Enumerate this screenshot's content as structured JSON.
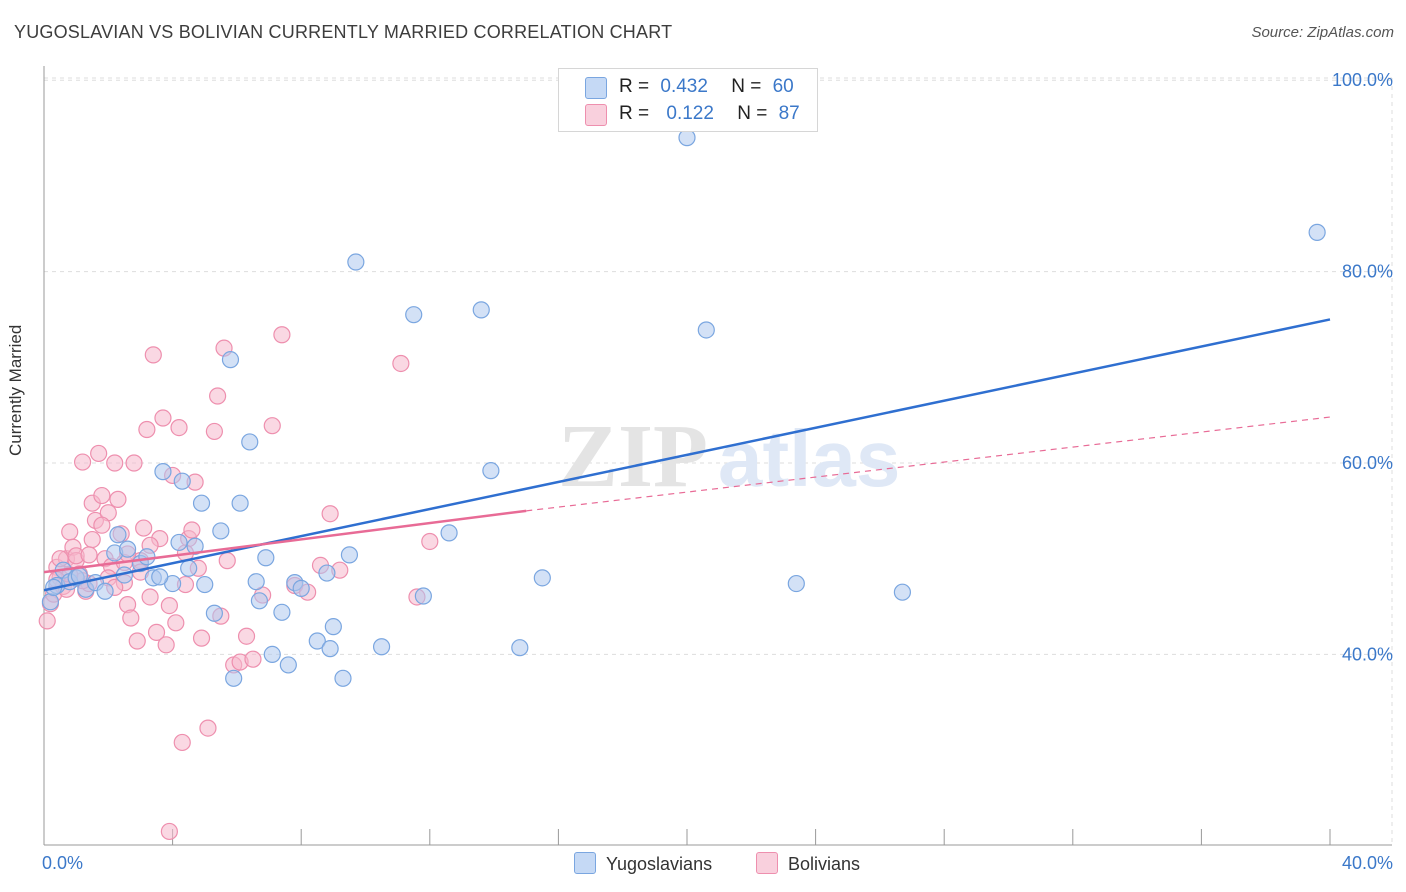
{
  "title": "YUGOSLAVIAN VS BOLIVIAN CURRENTLY MARRIED CORRELATION CHART",
  "source": "Source: ZipAtlas.com",
  "watermark": {
    "zip": "ZIP",
    "atlas": "atlas"
  },
  "colors": {
    "blue_fill": "#aec9ee",
    "blue_stroke": "#7aa6e0",
    "blue_line": "#2f6fd0",
    "pink_fill": "#f5b8cc",
    "pink_stroke": "#ee8fae",
    "pink_line": "#e86b96",
    "label_blue": "#3b78c9",
    "grid": "#dddddd"
  },
  "legend": {
    "rows": [
      {
        "r_label": "R =",
        "r_value": "0.432",
        "n_label": "N =",
        "n_value": "60",
        "color": "#aec9ee"
      },
      {
        "r_label": "R =",
        "r_value": "0.122",
        "n_label": "N =",
        "n_value": "87",
        "color": "#f5b8cc"
      }
    ]
  },
  "bottom_legend": [
    {
      "label": "Yugoslavians",
      "color": "#aec9ee"
    },
    {
      "label": "Bolivians",
      "color": "#f5b8cc"
    }
  ],
  "chart_data": {
    "type": "scatter",
    "title": "YUGOSLAVIAN VS BOLIVIAN CURRENTLY MARRIED CORRELATION CHART",
    "xlabel": "",
    "ylabel": "Currently Married",
    "xlim": [
      0,
      40
    ],
    "ylim": [
      20,
      103
    ],
    "x_tick_labels": [
      "0.0%",
      "40.0%"
    ],
    "y_ticks": [
      40,
      60,
      80,
      100
    ],
    "y_tick_labels": [
      "40.0%",
      "60.0%",
      "80.0%",
      "100.0%"
    ],
    "series": [
      {
        "name": "Yugoslavians",
        "trend": {
          "x": [
            0,
            40
          ],
          "y": [
            46.7,
            75.0
          ],
          "style": "solid"
        },
        "points": [
          [
            0.2,
            45.5
          ],
          [
            0.4,
            47.2
          ],
          [
            0.6,
            48.8
          ],
          [
            0.8,
            47.6
          ],
          [
            1.0,
            48.0
          ],
          [
            1.3,
            46.8
          ],
          [
            1.6,
            47.5
          ],
          [
            1.9,
            46.6
          ],
          [
            2.2,
            50.6
          ],
          [
            2.3,
            52.5
          ],
          [
            2.5,
            48.3
          ],
          [
            3.0,
            49.5
          ],
          [
            3.2,
            50.2
          ],
          [
            3.4,
            48.0
          ],
          [
            3.7,
            59.1
          ],
          [
            4.0,
            47.4
          ],
          [
            4.2,
            51.7
          ],
          [
            4.3,
            58.1
          ],
          [
            4.5,
            49.0
          ],
          [
            4.7,
            51.3
          ],
          [
            4.9,
            55.8
          ],
          [
            5.0,
            47.3
          ],
          [
            5.3,
            44.3
          ],
          [
            5.5,
            52.9
          ],
          [
            5.8,
            70.8
          ],
          [
            5.9,
            37.5
          ],
          [
            6.1,
            55.8
          ],
          [
            6.4,
            62.2
          ],
          [
            6.6,
            47.6
          ],
          [
            6.7,
            45.6
          ],
          [
            6.9,
            50.1
          ],
          [
            7.1,
            40.0
          ],
          [
            7.4,
            44.4
          ],
          [
            7.6,
            38.9
          ],
          [
            7.8,
            47.5
          ],
          [
            8.0,
            46.9
          ],
          [
            8.5,
            41.4
          ],
          [
            8.8,
            48.5
          ],
          [
            8.9,
            40.6
          ],
          [
            9.0,
            42.9
          ],
          [
            9.3,
            37.5
          ],
          [
            9.5,
            50.4
          ],
          [
            9.7,
            81.0
          ],
          [
            10.5,
            40.8
          ],
          [
            11.5,
            75.5
          ],
          [
            11.8,
            46.1
          ],
          [
            12.6,
            52.7
          ],
          [
            13.6,
            76.0
          ],
          [
            13.9,
            59.2
          ],
          [
            14.8,
            40.7
          ],
          [
            15.5,
            48.0
          ],
          [
            20.0,
            94.0
          ],
          [
            20.6,
            73.9
          ],
          [
            23.4,
            47.4
          ],
          [
            26.7,
            46.5
          ],
          [
            39.6,
            84.1
          ],
          [
            0.3,
            47.0
          ],
          [
            1.1,
            48.2
          ],
          [
            3.6,
            48.1
          ],
          [
            2.6,
            51.0
          ]
        ]
      },
      {
        "name": "Bolivians",
        "trend": {
          "x": [
            0,
            15.0
          ],
          "y": [
            48.6,
            55.0
          ],
          "style": "solid"
        },
        "trend_extension": {
          "x": [
            15.0,
            40
          ],
          "y": [
            55.0,
            64.8
          ],
          "style": "dashed"
        },
        "points": [
          [
            0.1,
            43.5
          ],
          [
            0.2,
            45.3
          ],
          [
            0.3,
            46.3
          ],
          [
            0.4,
            49.1
          ],
          [
            0.5,
            48.0
          ],
          [
            0.6,
            47.1
          ],
          [
            0.7,
            50.0
          ],
          [
            0.8,
            52.8
          ],
          [
            0.9,
            51.2
          ],
          [
            1.0,
            49.8
          ],
          [
            1.1,
            48.4
          ],
          [
            1.2,
            60.1
          ],
          [
            1.3,
            46.6
          ],
          [
            1.4,
            47.4
          ],
          [
            1.5,
            55.8
          ],
          [
            1.6,
            54.0
          ],
          [
            1.7,
            61.0
          ],
          [
            1.8,
            56.6
          ],
          [
            1.9,
            50.0
          ],
          [
            2.0,
            54.8
          ],
          [
            2.1,
            49.2
          ],
          [
            2.2,
            60.0
          ],
          [
            2.3,
            56.2
          ],
          [
            2.4,
            52.6
          ],
          [
            2.5,
            47.5
          ],
          [
            2.6,
            45.2
          ],
          [
            2.7,
            43.8
          ],
          [
            2.8,
            60.0
          ],
          [
            2.9,
            41.4
          ],
          [
            3.0,
            49.8
          ],
          [
            3.1,
            53.2
          ],
          [
            3.2,
            63.5
          ],
          [
            3.3,
            46.0
          ],
          [
            3.4,
            71.3
          ],
          [
            3.5,
            42.3
          ],
          [
            3.6,
            52.1
          ],
          [
            3.7,
            64.7
          ],
          [
            3.8,
            41.0
          ],
          [
            3.9,
            45.1
          ],
          [
            4.0,
            58.7
          ],
          [
            4.1,
            43.3
          ],
          [
            4.2,
            63.7
          ],
          [
            4.3,
            30.8
          ],
          [
            4.4,
            47.3
          ],
          [
            4.5,
            52.1
          ],
          [
            4.6,
            53.0
          ],
          [
            4.7,
            58.0
          ],
          [
            4.8,
            49.0
          ],
          [
            4.9,
            41.7
          ],
          [
            5.1,
            32.3
          ],
          [
            5.3,
            63.3
          ],
          [
            5.4,
            67.0
          ],
          [
            5.5,
            44.0
          ],
          [
            5.6,
            72.0
          ],
          [
            5.7,
            49.8
          ],
          [
            5.9,
            38.9
          ],
          [
            6.1,
            39.2
          ],
          [
            6.3,
            41.9
          ],
          [
            6.5,
            39.5
          ],
          [
            7.1,
            63.9
          ],
          [
            7.4,
            73.4
          ],
          [
            7.8,
            47.2
          ],
          [
            8.2,
            46.5
          ],
          [
            8.6,
            49.3
          ],
          [
            8.9,
            54.7
          ],
          [
            9.2,
            48.8
          ],
          [
            11.1,
            70.4
          ],
          [
            11.6,
            46.0
          ],
          [
            12.0,
            51.8
          ],
          [
            3.9,
            21.5
          ],
          [
            1.0,
            50.3
          ],
          [
            1.5,
            52.0
          ],
          [
            2.0,
            48.0
          ],
          [
            2.5,
            49.6
          ],
          [
            3.0,
            48.6
          ],
          [
            0.5,
            50.0
          ],
          [
            1.2,
            47.7
          ],
          [
            0.8,
            48.3
          ],
          [
            1.8,
            53.5
          ],
          [
            2.6,
            50.5
          ],
          [
            3.3,
            51.4
          ],
          [
            4.4,
            50.6
          ],
          [
            0.4,
            47.8
          ],
          [
            0.7,
            46.8
          ],
          [
            1.4,
            50.4
          ],
          [
            2.2,
            47.0
          ],
          [
            6.8,
            46.2
          ]
        ]
      }
    ]
  }
}
